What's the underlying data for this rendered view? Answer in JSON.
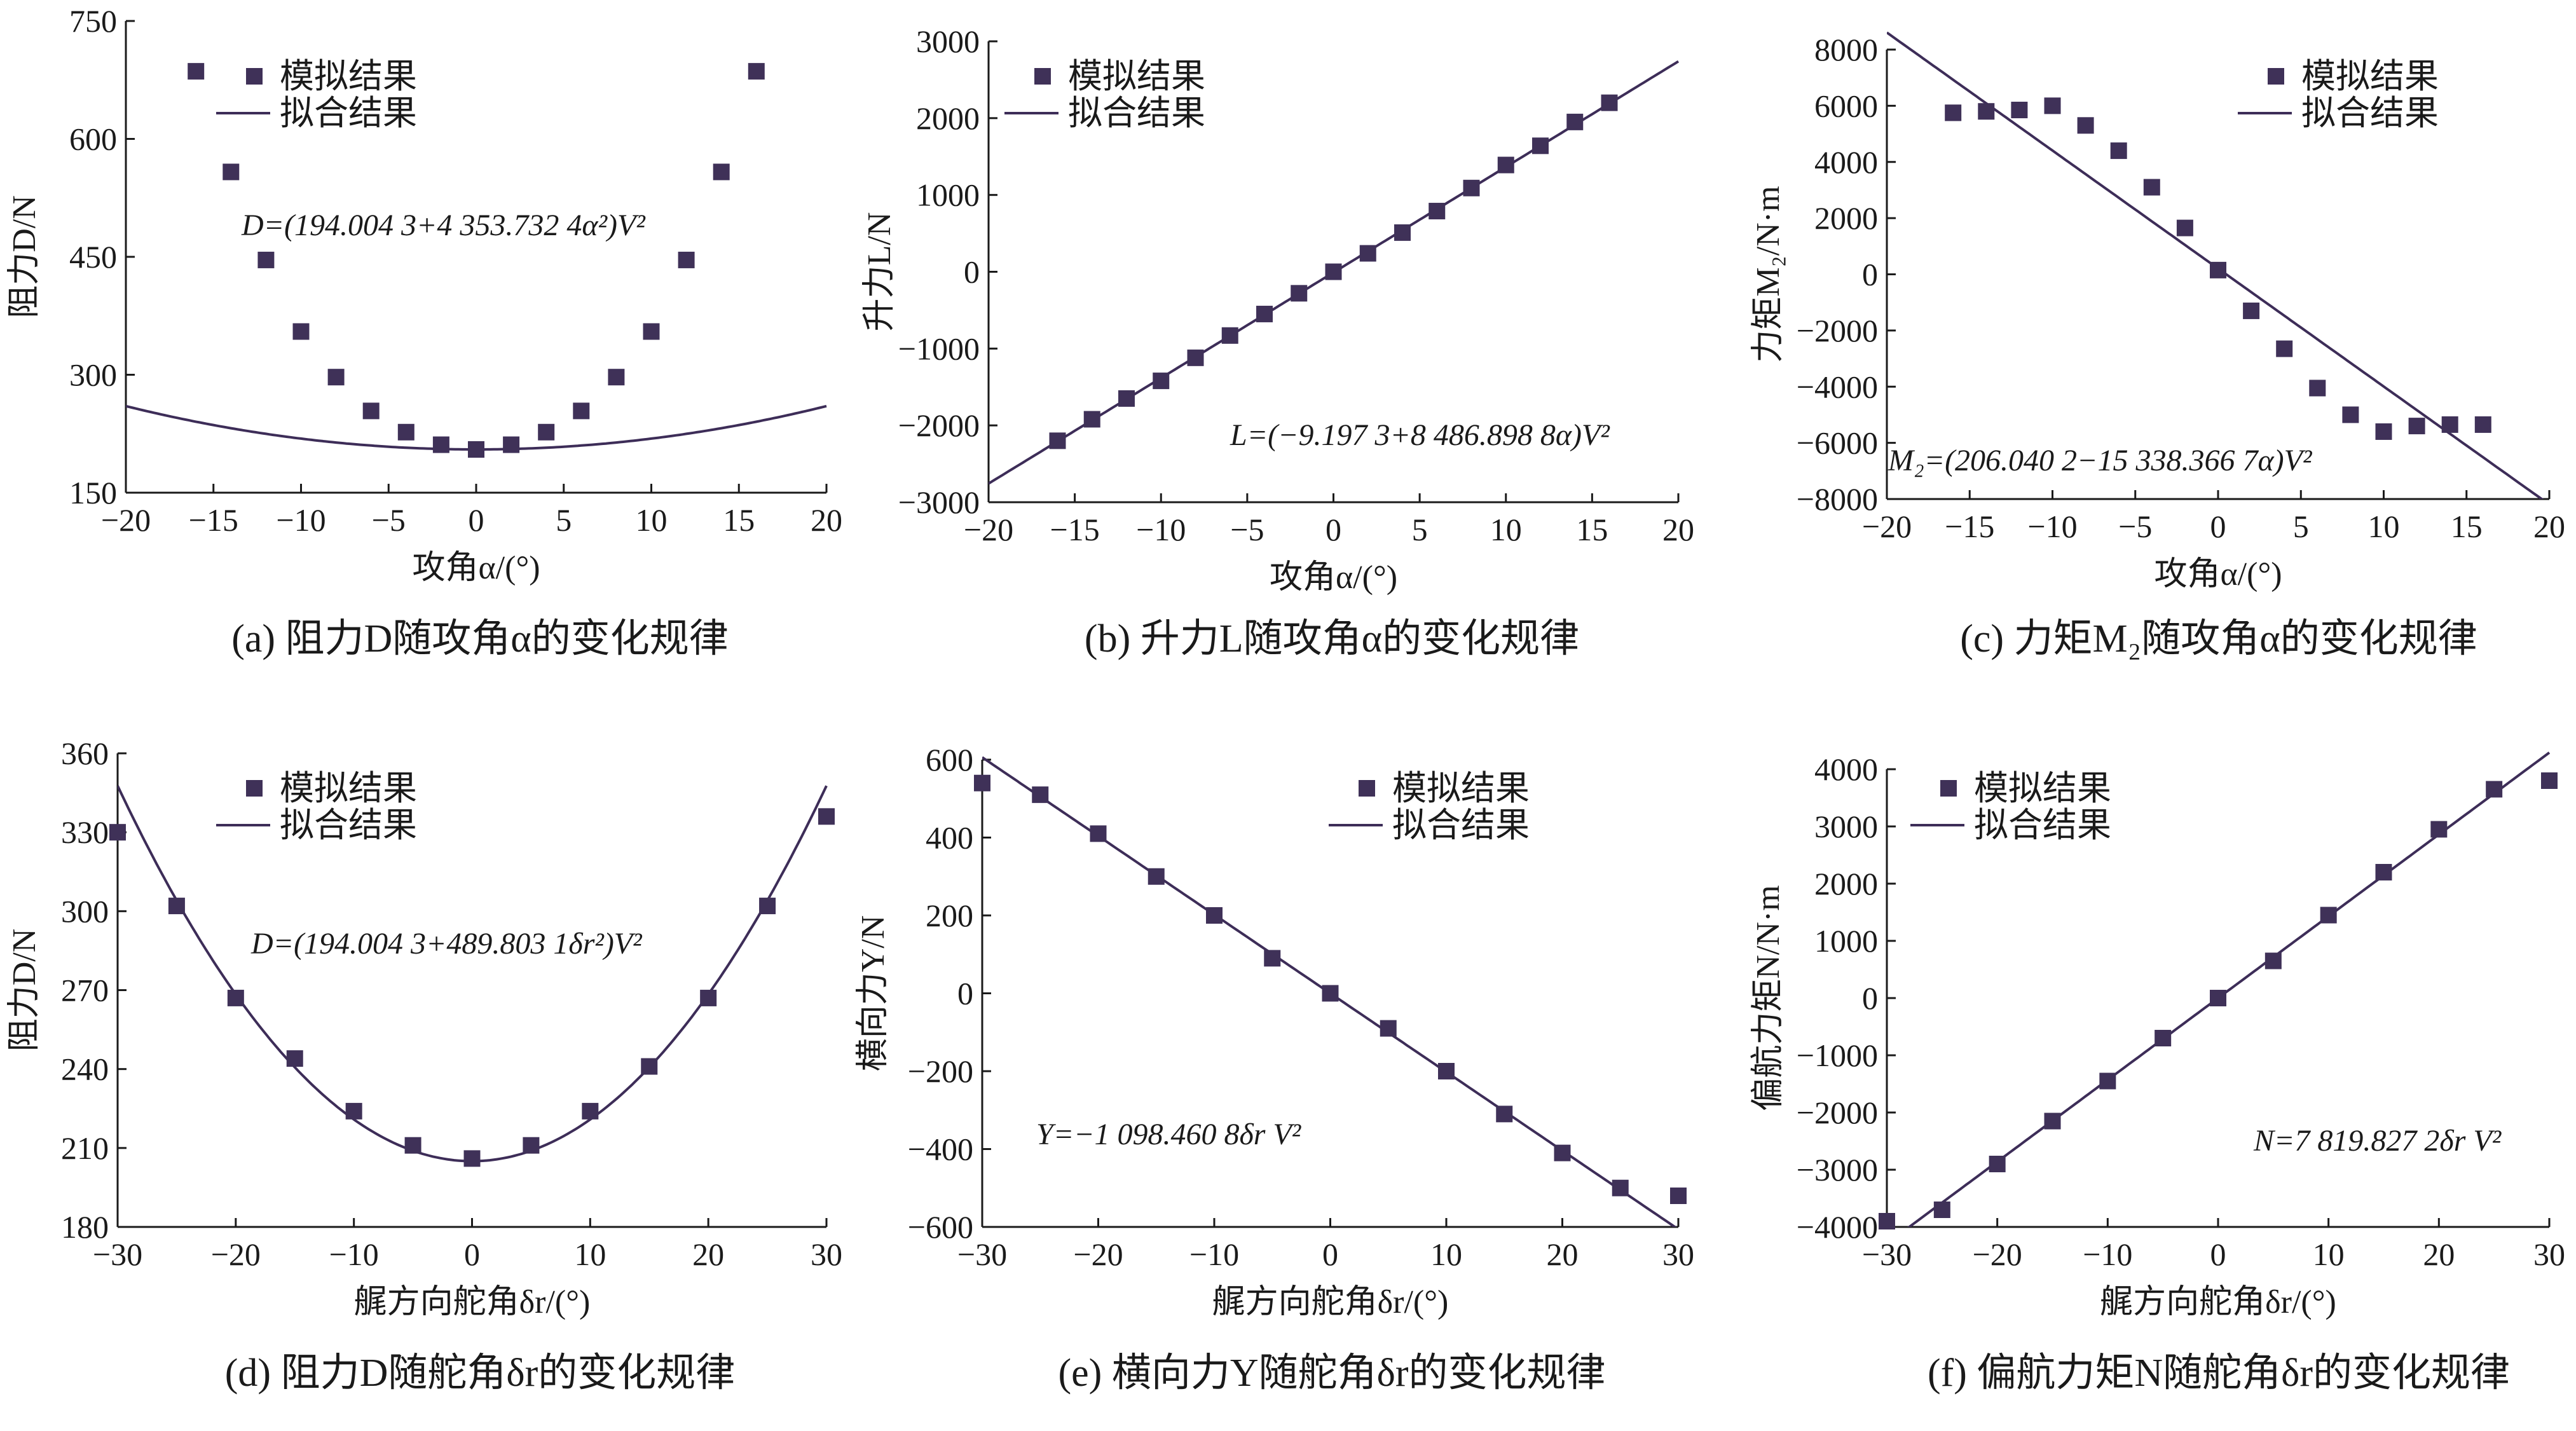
{
  "chart_data": [
    {
      "type": "scatter",
      "panel": "a",
      "caption": "(a)  阻力D随攻角α的变化规律",
      "xlabel": "攻角α/(°)",
      "ylabel": "阻力D/N",
      "xlim": [
        -20,
        20
      ],
      "ylim": [
        150,
        750
      ],
      "xticks": [
        -20,
        -15,
        -10,
        -5,
        0,
        5,
        10,
        15,
        20
      ],
      "yticks": [
        150,
        300,
        450,
        600,
        750
      ],
      "legend": {
        "position": "top-left",
        "entries": [
          "模拟结果",
          "拟合结果"
        ]
      },
      "equation": "D=(194.004 3+4 353.732 4α²)V²",
      "fit": {
        "kind": "quadratic",
        "c0": 205,
        "c2": 0.1378
      },
      "series": [
        {
          "name": "模拟结果",
          "x": [
            -16,
            -14,
            -12,
            -10,
            -8,
            -6,
            -4,
            -2,
            0,
            2,
            4,
            6,
            8,
            10,
            12,
            14,
            16
          ],
          "y": [
            686,
            558,
            446,
            355,
            297,
            254,
            227,
            211,
            205,
            211,
            227,
            254,
            297,
            355,
            446,
            558,
            686
          ]
        },
        {
          "name": "拟合结果",
          "kind": "line"
        }
      ]
    },
    {
      "type": "scatter",
      "panel": "b",
      "caption": "(b)  升力L随攻角α的变化规律",
      "xlabel": "攻角α/(°)",
      "ylabel": "升力L/N",
      "xlim": [
        -20,
        20
      ],
      "ylim": [
        -3000,
        3000
      ],
      "xticks": [
        -20,
        -15,
        -10,
        -5,
        0,
        5,
        10,
        15,
        20
      ],
      "yticks": [
        -3000,
        -2000,
        -1000,
        0,
        1000,
        2000,
        3000
      ],
      "legend": {
        "position": "top-left",
        "entries": [
          "模拟结果",
          "拟合结果"
        ]
      },
      "equation": "L=(−9.197 3+8 486.898 8α)V²",
      "fit": {
        "kind": "linear",
        "c0": -9.2,
        "c1": 137.4
      },
      "series": [
        {
          "name": "模拟结果",
          "x": [
            -16,
            -14,
            -12,
            -10,
            -8,
            -6,
            -4,
            -2,
            0,
            2,
            4,
            6,
            8,
            10,
            12,
            14,
            16
          ],
          "y": [
            -2200,
            -1920,
            -1650,
            -1420,
            -1120,
            -830,
            -550,
            -280,
            0,
            240,
            510,
            790,
            1090,
            1390,
            1640,
            1950,
            2200
          ]
        },
        {
          "name": "拟合结果",
          "kind": "line"
        }
      ]
    },
    {
      "type": "scatter",
      "panel": "c",
      "caption": "(c)  力矩M₂随攻角α的变化规律",
      "xlabel": "攻角α/(°)",
      "ylabel": "力矩M₂/N·m",
      "xlim": [
        -20,
        20
      ],
      "ylim": [
        -8000,
        8000
      ],
      "xticks": [
        -20,
        -15,
        -10,
        -5,
        0,
        5,
        10,
        15,
        20
      ],
      "yticks": [
        -8000,
        -6000,
        -4000,
        -2000,
        0,
        2000,
        4000,
        6000,
        8000
      ],
      "legend": {
        "position": "top-right",
        "entries": [
          "模拟结果",
          "拟合结果"
        ]
      },
      "equation": "M₂=(206.040 2−15 338.366 7α)V²",
      "fit": {
        "kind": "linear",
        "c0": 206,
        "c1": -420
      },
      "series": [
        {
          "name": "模拟结果",
          "x": [
            -16,
            -14,
            -12,
            -10,
            -8,
            -6,
            -4,
            -2,
            0,
            2,
            4,
            6,
            8,
            10,
            12,
            14,
            16
          ],
          "y": [
            5750,
            5800,
            5850,
            6000,
            5300,
            4400,
            3100,
            1650,
            150,
            -1300,
            -2650,
            -4050,
            -5000,
            -5600,
            -5400,
            -5350,
            -5350
          ]
        },
        {
          "name": "拟合结果",
          "kind": "line"
        }
      ]
    },
    {
      "type": "scatter",
      "panel": "d",
      "caption": "(d)  阻力D随舵角δr的变化规律",
      "xlabel": "艉方向舵角δr/(°)",
      "ylabel": "阻力D/N",
      "xlim": [
        -30,
        30
      ],
      "ylim": [
        180,
        360
      ],
      "xticks": [
        -30,
        -20,
        -10,
        0,
        10,
        20,
        30
      ],
      "yticks": [
        180,
        210,
        240,
        270,
        300,
        330,
        360
      ],
      "legend": {
        "position": "top-left",
        "entries": [
          "模拟结果",
          "拟合结果"
        ]
      },
      "equation": "D=(194.004 3+489.803 1δr²)V²",
      "fit": {
        "kind": "quadratic",
        "c0": 205,
        "c2": 0.1585
      },
      "series": [
        {
          "name": "模拟结果",
          "x": [
            -30,
            -25,
            -20,
            -15,
            -10,
            -5,
            0,
            5,
            10,
            15,
            20,
            25,
            30
          ],
          "y": [
            330,
            302,
            267,
            244,
            224,
            211,
            206,
            211,
            224,
            241,
            267,
            302,
            336
          ]
        },
        {
          "name": "拟合结果",
          "kind": "line"
        }
      ]
    },
    {
      "type": "scatter",
      "panel": "e",
      "caption": "(e)  横向力Y随舵角δr的变化规律",
      "xlabel": "艉方向舵角δr/(°)",
      "ylabel": "横向力Y/N",
      "xlim": [
        -30,
        30
      ],
      "ylim": [
        -600,
        600
      ],
      "xticks": [
        -30,
        -20,
        -10,
        0,
        10,
        20,
        30
      ],
      "yticks": [
        -600,
        -400,
        -200,
        0,
        200,
        400,
        600
      ],
      "legend": {
        "position": "top-right",
        "entries": [
          "模拟结果",
          "拟合结果"
        ]
      },
      "equation": "Y=−1 098.460 8δr V²",
      "fit": {
        "kind": "linear",
        "c0": 0,
        "c1": -20.2
      },
      "series": [
        {
          "name": "模拟结果",
          "x": [
            -30,
            -25,
            -20,
            -15,
            -10,
            -5,
            0,
            5,
            10,
            15,
            20,
            25,
            30
          ],
          "y": [
            540,
            510,
            410,
            300,
            200,
            90,
            0,
            -90,
            -200,
            -310,
            -410,
            -500,
            -520
          ]
        },
        {
          "name": "拟合结果",
          "kind": "line"
        }
      ]
    },
    {
      "type": "scatter",
      "panel": "f",
      "caption": "(f)  偏航力矩N随舵角δr的变化规律",
      "xlabel": "艉方向舵角δr/(°)",
      "ylabel": "偏航力矩N/N·m",
      "xlim": [
        -30,
        30
      ],
      "ylim": [
        -4000,
        4000
      ],
      "xticks": [
        -30,
        -20,
        -10,
        0,
        10,
        20,
        30
      ],
      "yticks": [
        -4000,
        -3000,
        -2000,
        -1000,
        0,
        1000,
        2000,
        3000,
        4000
      ],
      "legend": {
        "position": "top-left",
        "entries": [
          "模拟结果",
          "拟合结果"
        ]
      },
      "equation": "N=7 819.827 2δr V²",
      "fit": {
        "kind": "linear",
        "c0": 0,
        "c1": 143
      },
      "series": [
        {
          "name": "模拟结果",
          "x": [
            -30,
            -25,
            -20,
            -15,
            -10,
            -5,
            0,
            5,
            10,
            15,
            20,
            25,
            30
          ],
          "y": [
            -3900,
            -3700,
            -2900,
            -2150,
            -1450,
            -700,
            0,
            650,
            1450,
            2200,
            2950,
            3650,
            3800
          ]
        },
        {
          "name": "拟合结果",
          "kind": "line"
        }
      ]
    }
  ]
}
